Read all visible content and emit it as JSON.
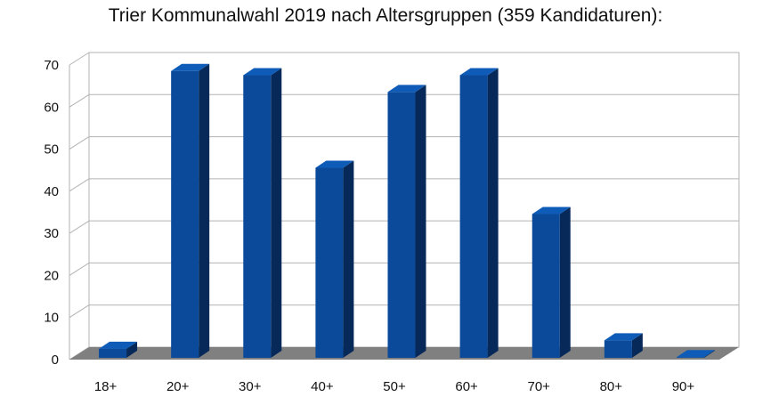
{
  "chart_data": {
    "type": "bar",
    "title": "Trier Kommunalwahl 2019 nach Altersgruppen (359 Kandidaturen):",
    "xlabel": "",
    "ylabel": "",
    "categories": [
      "18+",
      "20+",
      "30+",
      "40+",
      "50+",
      "60+",
      "70+",
      "80+",
      "90+"
    ],
    "values": [
      3,
      69,
      68,
      46,
      64,
      68,
      35,
      5,
      1
    ],
    "ylim": [
      0,
      70
    ],
    "yticks": [
      0,
      10,
      20,
      30,
      40,
      50,
      60,
      70
    ],
    "grid": true,
    "legend": "none",
    "colors": {
      "bar": "#0b4a9a",
      "bar_side": "#06295a",
      "bar_top": "#0f5cb8",
      "floor": "#808080",
      "grid": "#b3b3b3"
    }
  }
}
